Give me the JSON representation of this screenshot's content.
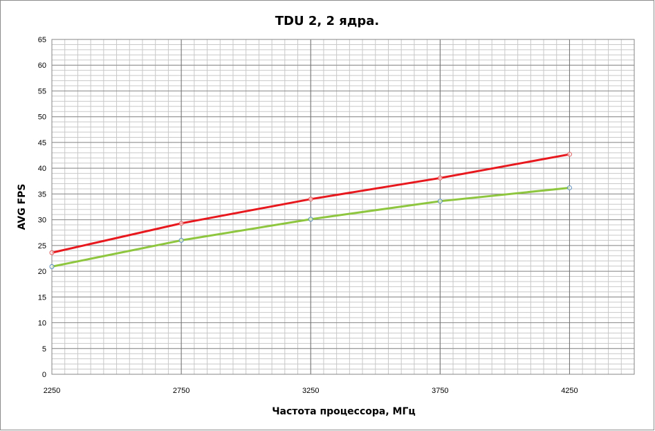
{
  "chart_data": {
    "type": "line",
    "title": "TDU 2, 2 ядра.",
    "xlabel": "Частота процессора, МГц",
    "ylabel": "AVG FPS",
    "x": [
      2250,
      2750,
      3250,
      3750,
      4250
    ],
    "xlim": [
      2250,
      4500
    ],
    "ylim": [
      0,
      65
    ],
    "x_ticks": [
      2250,
      2750,
      3250,
      3750,
      4250
    ],
    "y_ticks": [
      0,
      5,
      10,
      15,
      20,
      25,
      30,
      35,
      40,
      45,
      50,
      55,
      60,
      65
    ],
    "grid": true,
    "legend": "none",
    "series": [
      {
        "values": [
          23.6,
          29.3,
          34.0,
          38.1,
          42.7
        ],
        "color": "#e8191e",
        "marker_color": "#e06060"
      },
      {
        "values": [
          20.9,
          26.0,
          30.1,
          33.6,
          36.2
        ],
        "color": "#8ec63f",
        "marker_color": "#5b8fbf"
      }
    ]
  }
}
